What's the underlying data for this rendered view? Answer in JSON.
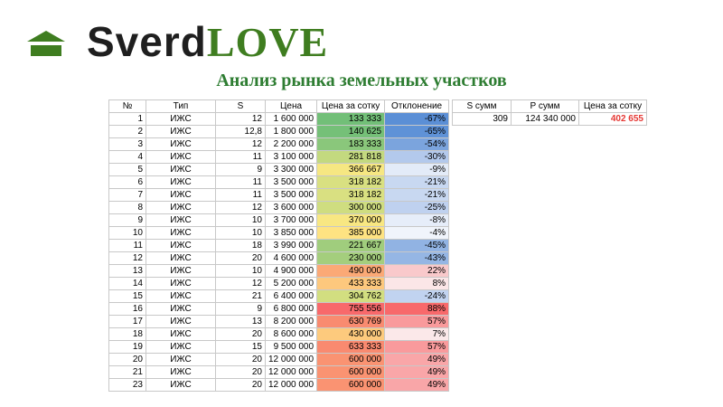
{
  "brand": {
    "part1": "Sverd",
    "part2": "LOVE",
    "accent": "#3f7d20"
  },
  "title": "Анализ рынка земельных участков",
  "table": {
    "headers": [
      "№",
      "Тип",
      "S",
      "Цена",
      "Цена за сотку",
      "Отклонение"
    ],
    "rows": [
      {
        "n": "1",
        "type": "ИЖС",
        "s": "12",
        "price": "1 600 000",
        "ppa": "133 333",
        "dev": "-67%",
        "ppa_color": "#72bf78",
        "dev_color": "#5b8fd6"
      },
      {
        "n": "2",
        "type": "ИЖС",
        "s": "12,8",
        "price": "1 800 000",
        "ppa": "140 625",
        "dev": "-65%",
        "ppa_color": "#75c078",
        "dev_color": "#5f92d7"
      },
      {
        "n": "3",
        "type": "ИЖС",
        "s": "12",
        "price": "2 200 000",
        "ppa": "183 333",
        "dev": "-54%",
        "ppa_color": "#8ac77b",
        "dev_color": "#7ba4dd"
      },
      {
        "n": "4",
        "type": "ИЖС",
        "s": "11",
        "price": "3 100 000",
        "ppa": "281 818",
        "dev": "-30%",
        "ppa_color": "#c3d97f",
        "dev_color": "#b3c9ec"
      },
      {
        "n": "5",
        "type": "ИЖС",
        "s": "9",
        "price": "3 300 000",
        "ppa": "366 667",
        "dev": "-9%",
        "ppa_color": "#f6e782",
        "dev_color": "#e3ebf8"
      },
      {
        "n": "6",
        "type": "ИЖС",
        "s": "11",
        "price": "3 500 000",
        "ppa": "318 182",
        "dev": "-21%",
        "ppa_color": "#d9e081",
        "dev_color": "#c8d8f1"
      },
      {
        "n": "7",
        "type": "ИЖС",
        "s": "11",
        "price": "3 500 000",
        "ppa": "318 182",
        "dev": "-21%",
        "ppa_color": "#d9e081",
        "dev_color": "#c8d8f1"
      },
      {
        "n": "8",
        "type": "ИЖС",
        "s": "12",
        "price": "3 600 000",
        "ppa": "300 000",
        "dev": "-25%",
        "ppa_color": "#cfdd80",
        "dev_color": "#bfd1ef"
      },
      {
        "n": "9",
        "type": "ИЖС",
        "s": "10",
        "price": "3 700 000",
        "ppa": "370 000",
        "dev": "-8%",
        "ppa_color": "#f8e782",
        "dev_color": "#e6edf9"
      },
      {
        "n": "10",
        "type": "ИЖС",
        "s": "10",
        "price": "3 850 000",
        "ppa": "385 000",
        "dev": "-4%",
        "ppa_color": "#fee382",
        "dev_color": "#f0f4fb"
      },
      {
        "n": "11",
        "type": "ИЖС",
        "s": "18",
        "price": "3 990 000",
        "ppa": "221 667",
        "dev": "-45%",
        "ppa_color": "#a0cd7d",
        "dev_color": "#91b3e3"
      },
      {
        "n": "12",
        "type": "ИЖС",
        "s": "20",
        "price": "4 600 000",
        "ppa": "230 000",
        "dev": "-43%",
        "ppa_color": "#a4ce7d",
        "dev_color": "#95b6e4"
      },
      {
        "n": "13",
        "type": "ИЖС",
        "s": "10",
        "price": "4 900 000",
        "ppa": "490 000",
        "dev": "22%",
        "ppa_color": "#fba976",
        "dev_color": "#f9c9cb"
      },
      {
        "n": "14",
        "type": "ИЖС",
        "s": "12",
        "price": "5 200 000",
        "ppa": "433 333",
        "dev": "8%",
        "ppa_color": "#fdc87d",
        "dev_color": "#fbe6e7"
      },
      {
        "n": "15",
        "type": "ИЖС",
        "s": "21",
        "price": "6 400 000",
        "ppa": "304 762",
        "dev": "-24%",
        "ppa_color": "#d2de80",
        "dev_color": "#c1d3f0"
      },
      {
        "n": "16",
        "type": "ИЖС",
        "s": "9",
        "price": "6 800 000",
        "ppa": "755 556",
        "dev": "88%",
        "ppa_color": "#f8696b",
        "dev_color": "#f8696b"
      },
      {
        "n": "17",
        "type": "ИЖС",
        "s": "13",
        "price": "8 200 000",
        "ppa": "630 769",
        "dev": "57%",
        "ppa_color": "#f98b70",
        "dev_color": "#f99a9c"
      },
      {
        "n": "18",
        "type": "ИЖС",
        "s": "20",
        "price": "8 600 000",
        "ppa": "430 000",
        "dev": "7%",
        "ppa_color": "#fdca7d",
        "dev_color": "#fbe8e9"
      },
      {
        "n": "19",
        "type": "ИЖС",
        "s": "15",
        "price": "9 500 000",
        "ppa": "633 333",
        "dev": "57%",
        "ppa_color": "#f98a70",
        "dev_color": "#f99a9c"
      },
      {
        "n": "20",
        "type": "ИЖС",
        "s": "20",
        "price": "12 000 000",
        "ppa": "600 000",
        "dev": "49%",
        "ppa_color": "#fa9372",
        "dev_color": "#f9a6a8"
      },
      {
        "n": "21",
        "type": "ИЖС",
        "s": "20",
        "price": "12 000 000",
        "ppa": "600 000",
        "dev": "49%",
        "ppa_color": "#fa9372",
        "dev_color": "#f9a6a8"
      },
      {
        "n": "23",
        "type": "ИЖС",
        "s": "20",
        "price": "12 000 000",
        "ppa": "600 000",
        "dev": "49%",
        "ppa_color": "#fa9372",
        "dev_color": "#f9a6a8"
      }
    ]
  },
  "summary": {
    "headers": [
      "S сумм",
      "P сумм",
      "Цена за сотку"
    ],
    "values": [
      "309",
      "124 340 000",
      "402 655"
    ],
    "highlight_color": "#e53935"
  }
}
